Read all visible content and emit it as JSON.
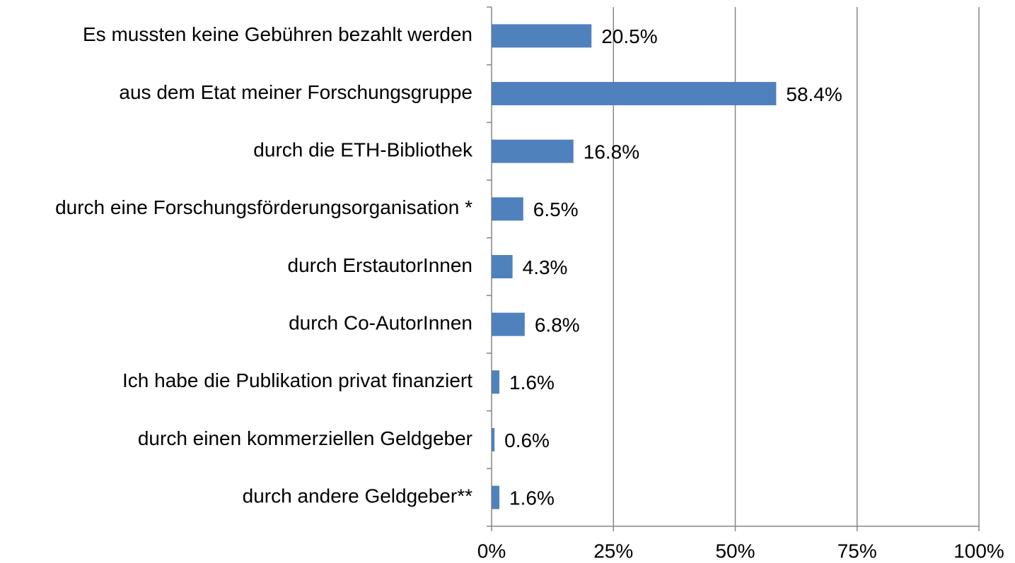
{
  "chart_data": {
    "type": "bar",
    "orientation": "horizontal",
    "categories": [
      "Es mussten keine Gebühren bezahlt werden",
      "aus dem Etat meiner Forschungsgruppe",
      "durch die ETH-Bibliothek",
      "durch eine Forschungsförderungsorganisation *",
      "durch ErstautorInnen",
      "durch Co-AutorInnen",
      "Ich habe die Publikation privat finanziert",
      "durch einen kommerziellen Geldgeber",
      "durch andere Geldgeber**"
    ],
    "values": [
      20.5,
      58.4,
      16.8,
      6.5,
      4.3,
      6.8,
      1.6,
      0.6,
      1.6
    ],
    "value_labels": [
      "20.5%",
      "58.4%",
      "16.8%",
      "6.5%",
      "4.3%",
      "6.8%",
      "1.6%",
      "0.6%",
      "1.6%"
    ],
    "color": "#4f81bd",
    "xlim": [
      0,
      100
    ],
    "xticks": [
      {
        "value": 0,
        "label": "0%"
      },
      {
        "value": 25,
        "label": "25%"
      },
      {
        "value": 50,
        "label": "50%"
      },
      {
        "value": 75,
        "label": "75%"
      },
      {
        "value": 100,
        "label": "100%"
      }
    ],
    "grid": true
  }
}
